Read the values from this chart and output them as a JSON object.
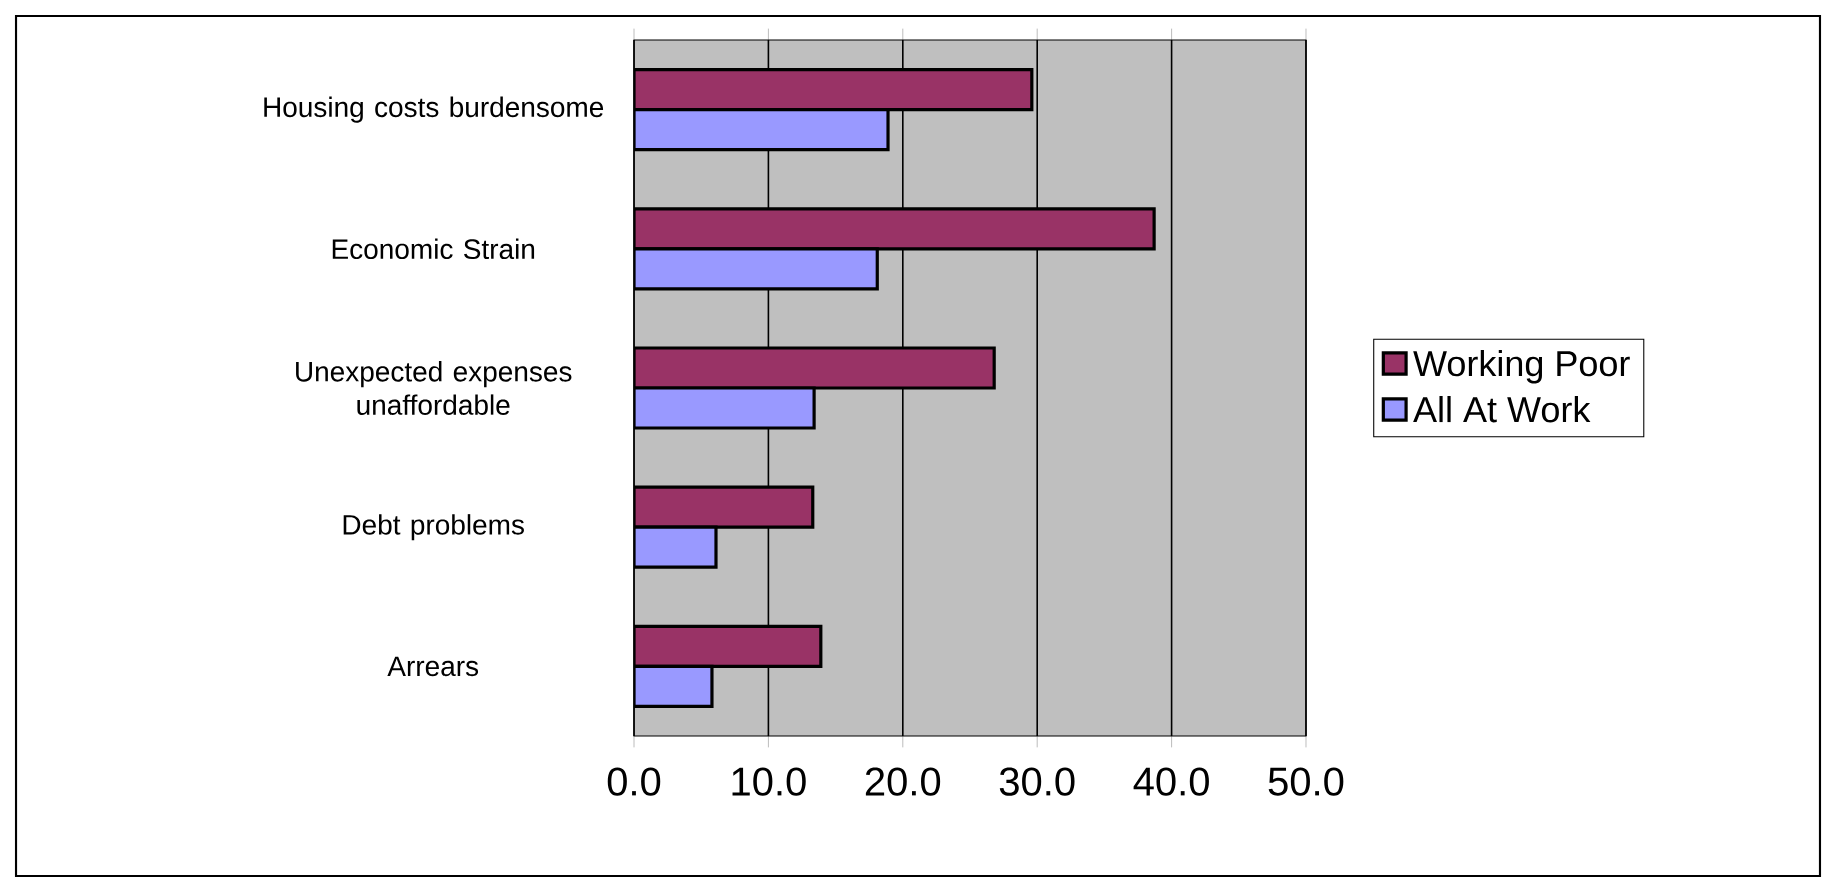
{
  "chart_data": {
    "type": "bar",
    "orientation": "horizontal",
    "categories": [
      "Housing costs burdensome",
      "Economic Strain",
      "Unexpected expenses unaffordable",
      "Debt problems",
      "Arrears"
    ],
    "series": [
      {
        "name": "Working Poor",
        "color": "#993366",
        "values": [
          29.6,
          38.7,
          26.8,
          13.3,
          13.9
        ]
      },
      {
        "name": "All At Work",
        "color": "#9999ff",
        "values": [
          18.9,
          18.1,
          13.4,
          6.1,
          5.8
        ]
      }
    ],
    "xlim": [
      0,
      50
    ],
    "xticks": [
      {
        "value": 0,
        "label": "0.0"
      },
      {
        "value": 10,
        "label": "10.0"
      },
      {
        "value": 20,
        "label": "20.0"
      },
      {
        "value": 30,
        "label": "30.0"
      },
      {
        "value": 40,
        "label": "40.0"
      },
      {
        "value": 50,
        "label": "50.0"
      }
    ],
    "grid": "x",
    "legend": "right"
  }
}
